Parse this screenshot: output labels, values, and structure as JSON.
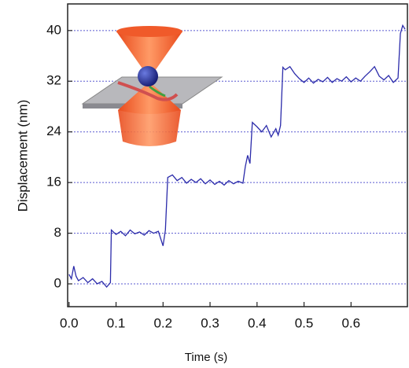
{
  "chart_data": {
    "type": "line",
    "x_label": "Time (s)",
    "y_label": "Displacement (nm)",
    "color": "#2b2baa",
    "grid": true,
    "xlim": [
      -0.003,
      0.72
    ],
    "ylim": [
      -3.6,
      44.2
    ],
    "xticks": [
      {
        "value": 0,
        "label": "0.0"
      },
      0.1,
      0.2,
      0.3,
      0.4,
      0.5,
      0.6
    ],
    "yticks": [
      0,
      8,
      16,
      24,
      32,
      40
    ],
    "x": [
      0,
      0.005,
      0.01,
      0.015,
      0.02,
      0.03,
      0.04,
      0.05,
      0.06,
      0.07,
      0.08,
      0.088,
      0.09,
      0.1,
      0.11,
      0.12,
      0.13,
      0.14,
      0.15,
      0.16,
      0.17,
      0.18,
      0.19,
      0.2,
      0.205,
      0.21,
      0.22,
      0.23,
      0.24,
      0.25,
      0.26,
      0.27,
      0.28,
      0.29,
      0.3,
      0.31,
      0.32,
      0.33,
      0.34,
      0.35,
      0.36,
      0.37,
      0.375,
      0.38,
      0.385,
      0.39,
      0.4,
      0.41,
      0.42,
      0.43,
      0.44,
      0.445,
      0.45,
      0.455,
      0.46,
      0.47,
      0.48,
      0.49,
      0.5,
      0.51,
      0.52,
      0.53,
      0.54,
      0.55,
      0.56,
      0.57,
      0.58,
      0.59,
      0.6,
      0.61,
      0.62,
      0.63,
      0.64,
      0.65,
      0.66,
      0.67,
      0.68,
      0.69,
      0.7,
      0.705,
      0.71,
      0.715
    ],
    "values": [
      1.5,
      0.8,
      2.8,
      1.2,
      0.5,
      1.0,
      0.2,
      0.8,
      0.0,
      0.4,
      -0.5,
      0.2,
      8.5,
      7.8,
      8.3,
      7.6,
      8.5,
      7.9,
      8.2,
      7.7,
      8.4,
      8.0,
      8.3,
      6.0,
      8.5,
      16.8,
      17.2,
      16.3,
      16.8,
      15.9,
      16.5,
      16.0,
      16.6,
      15.8,
      16.4,
      15.7,
      16.2,
      15.6,
      16.3,
      15.8,
      16.2,
      15.9,
      18.5,
      20.3,
      19.0,
      25.5,
      24.8,
      24.0,
      25.0,
      23.2,
      24.5,
      23.5,
      25.0,
      34.2,
      33.8,
      34.3,
      33.2,
      32.4,
      31.8,
      32.5,
      31.7,
      32.3,
      31.9,
      32.6,
      31.8,
      32.4,
      32.0,
      32.7,
      31.9,
      32.5,
      32.0,
      32.8,
      33.5,
      34.3,
      32.8,
      32.2,
      32.9,
      31.8,
      32.5,
      39.5,
      40.8,
      40.2
    ]
  }
}
